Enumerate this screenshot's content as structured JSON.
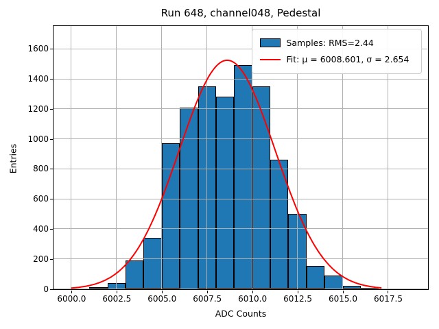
{
  "title": "Run 648, channel048, Pedestal",
  "axes": {
    "xlabel": "ADC Counts",
    "ylabel": "Entries",
    "x_tick_labels": [
      "6000.0",
      "6002.5",
      "6005.0",
      "6007.5",
      "6010.0",
      "6012.5",
      "6015.0",
      "6017.5"
    ],
    "y_tick_labels": [
      "0",
      "200",
      "400",
      "600",
      "800",
      "1000",
      "1200",
      "1400",
      "1600"
    ]
  },
  "legend": {
    "samples_label": "Samples: RMS=2.44",
    "fit_label": "Fit: μ = 6008.601, σ = 2.654"
  },
  "colors": {
    "bar_fill": "#1f77b4",
    "bar_edge": "#000000",
    "fit_line": "#ff0000",
    "grid": "#b0b0b0",
    "legend_border": "#cccccc"
  },
  "chart_data": {
    "type": "bar",
    "subtype": "histogram-with-gaussian-fit",
    "title": "Run 648, channel048, Pedestal",
    "xlabel": "ADC Counts",
    "ylabel": "Entries",
    "bin_start": 6000,
    "bin_width": 1,
    "bin_counts": [
      3,
      12,
      40,
      190,
      340,
      970,
      1210,
      1350,
      1280,
      1490,
      1350,
      860,
      500,
      155,
      88,
      22,
      8,
      0,
      0
    ],
    "samples_rms": 2.44,
    "fit": {
      "mu": 6008.601,
      "sigma": 2.654,
      "amplitude": 1527,
      "x_min": 6000.0,
      "x_max": 6017.1
    },
    "xlim": [
      5999.0,
      6019.7
    ],
    "ylim": [
      0,
      1755
    ],
    "x_tick_values": [
      6000,
      6002.5,
      6005,
      6007.5,
      6010,
      6012.5,
      6015,
      6017.5
    ],
    "y_tick_values": [
      0,
      200,
      400,
      600,
      800,
      1000,
      1200,
      1400,
      1600
    ],
    "grid": true,
    "grid_above_bars": true,
    "legend_position": "upper right"
  }
}
